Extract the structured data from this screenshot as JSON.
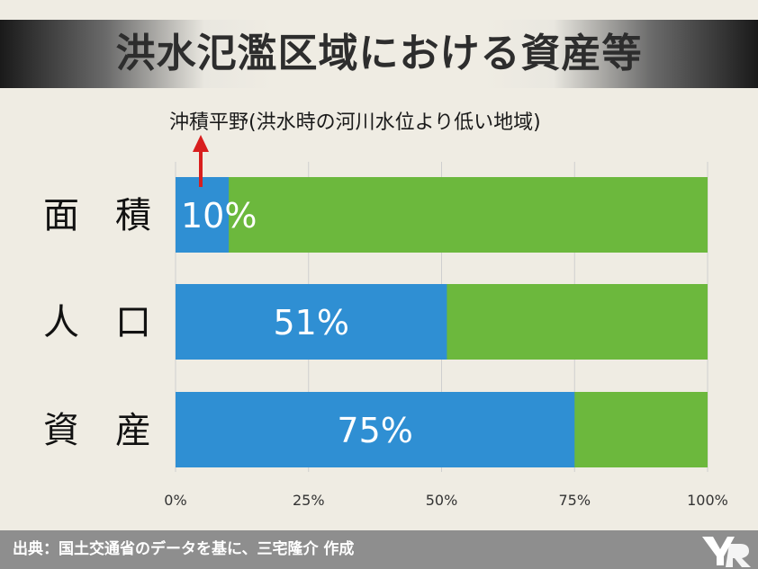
{
  "title": "洪水氾濫区域における資産等",
  "note": "沖積平野(洪水時の河川水位より低い地域)",
  "footer": "出典：国土交通省のデータを基に、三宅隆介 作成",
  "colors": {
    "blue": "#2f8fd3",
    "green": "#6cb83d",
    "arrow": "#d81e1e",
    "grid": "#cfcfcf",
    "footer": "#8e8e8e"
  },
  "chart_data": {
    "type": "bar",
    "orientation": "horizontal",
    "stacked": true,
    "categories": [
      "面　積",
      "人　口",
      "資　産"
    ],
    "values": [
      10,
      51,
      75
    ],
    "value_labels": [
      "10%",
      "51%",
      "75%"
    ],
    "xlim": [
      0,
      100
    ],
    "x_ticks": [
      0,
      25,
      50,
      75,
      100
    ],
    "x_tick_labels": [
      "0%",
      "25%",
      "50%",
      "75%",
      "100%"
    ],
    "grid": true
  }
}
